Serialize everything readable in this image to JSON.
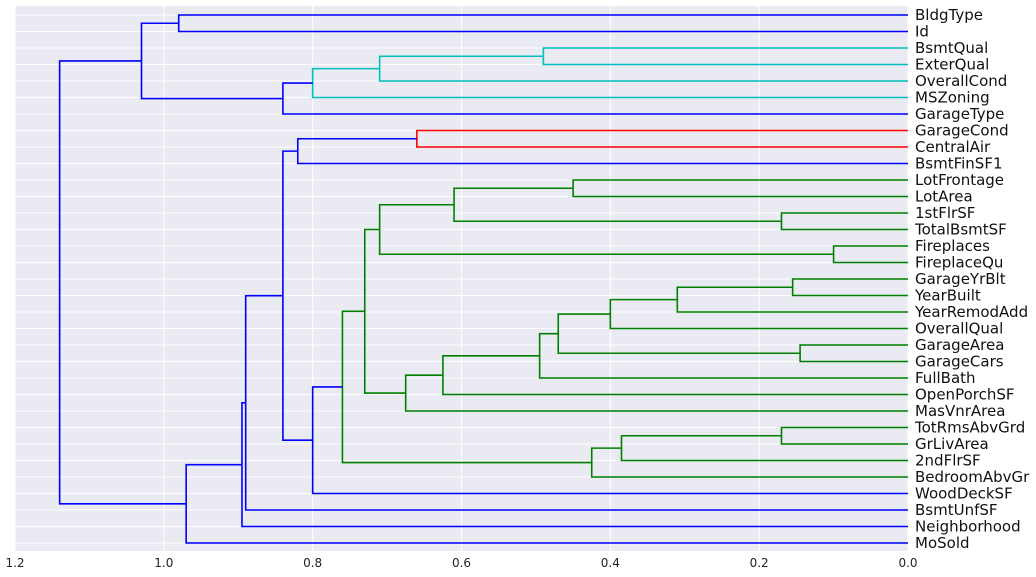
{
  "chart_data": {
    "type": "dendrogram",
    "orientation": "left",
    "x_axis": {
      "ticks": [
        1.2,
        1.0,
        0.8,
        0.6,
        0.4,
        0.2,
        0.0
      ],
      "tick_labels": [
        "1.2",
        "1.0",
        "0.8",
        "0.6",
        "0.4",
        "0.2",
        "0.0"
      ],
      "range": [
        1.2,
        0.0
      ]
    },
    "grid": true,
    "background_color": "#EAEAF2",
    "leaves": [
      "BldgType",
      "Id",
      "BsmtQual",
      "ExterQual",
      "OverallCond",
      "MSZoning",
      "GarageType",
      "GarageCond",
      "CentralAir",
      "BsmtFinSF1",
      "LotFrontage",
      "LotArea",
      "1stFlrSF",
      "TotalBsmtSF",
      "Fireplaces",
      "FireplaceQu",
      "GarageYrBlt",
      "YearBuilt",
      "YearRemodAdd",
      "OverallQual",
      "GarageArea",
      "GarageCars",
      "FullBath",
      "OpenPorchSF",
      "MasVnrArea",
      "TotRmsAbvGrd",
      "GrLivArea",
      "2ndFlrSF",
      "BedroomAbvGr",
      "WoodDeckSF",
      "BsmtUnfSF",
      "Neighborhood",
      "MoSold"
    ],
    "links": [
      {
        "left": "BldgType",
        "right": "Id",
        "height": 0.98,
        "color": "#0000ff"
      },
      {
        "left": "BsmtQual",
        "right": "ExterQual",
        "height": 0.49,
        "color": "#00bfbf"
      },
      {
        "left": "c1",
        "right": "OverallCond",
        "height": 0.71,
        "color": "#00bfbf"
      },
      {
        "left": "c2",
        "right": "MSZoning",
        "height": 0.8,
        "color": "#00bfbf"
      },
      {
        "left": "c3",
        "right": "GarageType",
        "height": 0.84,
        "color": "#0000ff"
      },
      {
        "left": "c0",
        "right": "c4",
        "height": 1.03,
        "color": "#0000ff"
      },
      {
        "left": "GarageCond",
        "right": "CentralAir",
        "height": 0.66,
        "color": "#ff0000"
      },
      {
        "left": "c6",
        "right": "BsmtFinSF1",
        "height": 0.82,
        "color": "#0000ff"
      },
      {
        "left": "LotFrontage",
        "right": "LotArea",
        "height": 0.45,
        "color": "#008000"
      },
      {
        "left": "1stFlrSF",
        "right": "TotalBsmtSF",
        "height": 0.17,
        "color": "#008000"
      },
      {
        "left": "c8",
        "right": "c9",
        "height": 0.61,
        "color": "#008000"
      },
      {
        "left": "Fireplaces",
        "right": "FireplaceQu",
        "height": 0.1,
        "color": "#008000"
      },
      {
        "left": "c10",
        "right": "c11",
        "height": 0.71,
        "color": "#008000"
      },
      {
        "left": "GarageYrBlt",
        "right": "YearBuilt",
        "height": 0.155,
        "color": "#008000"
      },
      {
        "left": "c13",
        "right": "YearRemodAdd",
        "height": 0.31,
        "color": "#008000"
      },
      {
        "left": "c14",
        "right": "OverallQual",
        "height": 0.4,
        "color": "#008000"
      },
      {
        "left": "GarageArea",
        "right": "GarageCars",
        "height": 0.145,
        "color": "#008000"
      },
      {
        "left": "c15",
        "right": "c16",
        "height": 0.47,
        "color": "#008000"
      },
      {
        "left": "c17",
        "right": "FullBath",
        "height": 0.495,
        "color": "#008000"
      },
      {
        "left": "c18",
        "right": "OpenPorchSF",
        "height": 0.625,
        "color": "#008000"
      },
      {
        "left": "c19",
        "right": "MasVnrArea",
        "height": 0.675,
        "color": "#008000"
      },
      {
        "left": "c12",
        "right": "c20",
        "height": 0.73,
        "color": "#008000"
      },
      {
        "left": "TotRmsAbvGrd",
        "right": "GrLivArea",
        "height": 0.17,
        "color": "#008000"
      },
      {
        "left": "c22",
        "right": "2ndFlrSF",
        "height": 0.385,
        "color": "#008000"
      },
      {
        "left": "c23",
        "right": "BedroomAbvGr",
        "height": 0.425,
        "color": "#008000"
      },
      {
        "left": "c21",
        "right": "c24",
        "height": 0.76,
        "color": "#008000"
      },
      {
        "left": "c25",
        "right": "WoodDeckSF",
        "height": 0.8,
        "color": "#0000ff"
      },
      {
        "left": "c7",
        "right": "c26",
        "height": 0.84,
        "color": "#0000ff"
      },
      {
        "left": "c27",
        "right": "BsmtUnfSF",
        "height": 0.89,
        "color": "#0000ff"
      },
      {
        "left": "c28",
        "right": "Neighborhood",
        "height": 0.895,
        "color": "#0000ff"
      },
      {
        "left": "c29",
        "right": "MoSold",
        "height": 0.97,
        "color": "#0000ff"
      },
      {
        "left": "c5",
        "right": "c30",
        "height": 1.14,
        "color": "#0000ff"
      }
    ]
  }
}
